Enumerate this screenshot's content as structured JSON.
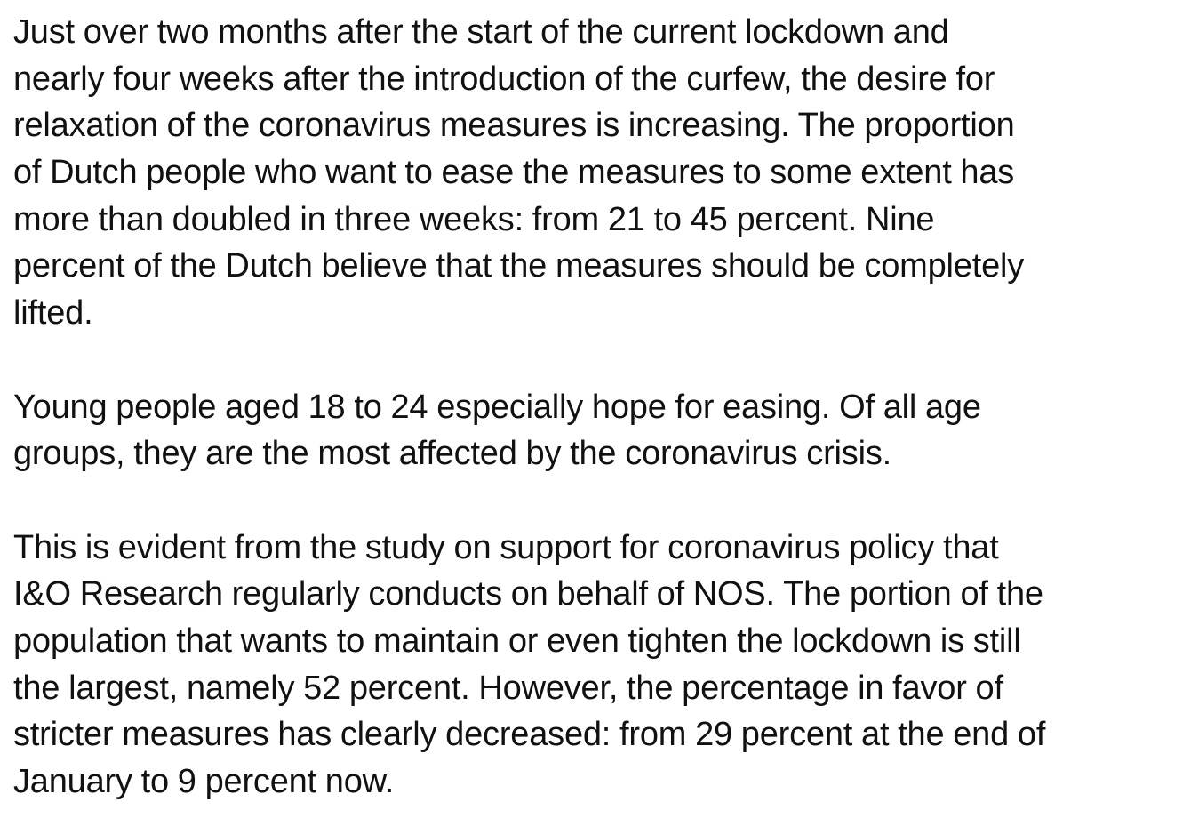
{
  "paragraphs": [
    {
      "lines": [
        "Just over two months after the start of the current lockdown and",
        "nearly four weeks after the introduction of the curfew, the desire for",
        "relaxation of the coronavirus measures is increasing. The proportion",
        "of Dutch people who want to ease the measures to some extent has",
        "more than doubled in three weeks: from 21 to 45 percent. Nine",
        "percent of the Dutch believe that the measures should be completely",
        "lifted."
      ]
    },
    {
      "lines": [
        "Young people aged 18 to 24 especially hope for easing. Of all age",
        "groups, they are the most affected by the coronavirus crisis."
      ]
    },
    {
      "lines": [
        "This is evident from the study on support for coronavirus policy that",
        "I&O Research regularly conducts on behalf of NOS. The portion of the",
        "population that wants to maintain or even tighten the lockdown is still",
        "the largest, namely 52 percent. However, the percentage in favor of",
        "stricter measures has clearly decreased: from 29 percent at the end of",
        "January to 9 percent now."
      ]
    }
  ]
}
